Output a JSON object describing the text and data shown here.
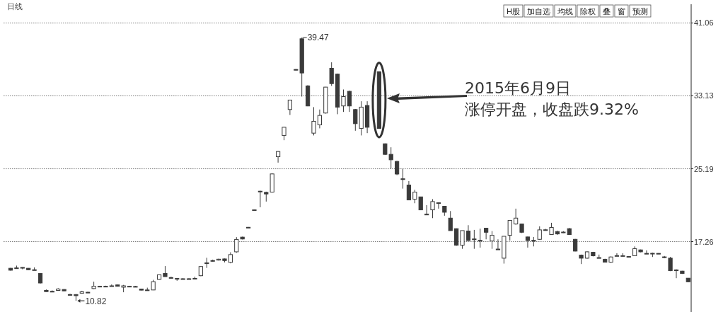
{
  "chart_data": {
    "type": "candlestick",
    "title": "日线",
    "categories": [
      null,
      null,
      null,
      null,
      null,
      null,
      null,
      null,
      null,
      null,
      null,
      null,
      null,
      null,
      null,
      null,
      null,
      null,
      null,
      null,
      null,
      null,
      null,
      null,
      null,
      null,
      null,
      null,
      null,
      null,
      null,
      null,
      null,
      null,
      null,
      null,
      null,
      null,
      null,
      null,
      null,
      null,
      null,
      null,
      null,
      null,
      null,
      null,
      null,
      null,
      null,
      null,
      null,
      null,
      null,
      null,
      null,
      null,
      null,
      null,
      null,
      null,
      null,
      null,
      null,
      null,
      null,
      null,
      null,
      null,
      null,
      null,
      null,
      null,
      null,
      null,
      null,
      null,
      null,
      null,
      null,
      null,
      null,
      null,
      null,
      null,
      null,
      null,
      null,
      null,
      null,
      null,
      null,
      null,
      null,
      null,
      null,
      null,
      null,
      null,
      null,
      null,
      null,
      null,
      null,
      null,
      null,
      null,
      null,
      null,
      null,
      null,
      null,
      null,
      null
    ],
    "ohlc": [
      [
        14.36,
        14.4,
        14.1,
        14.15
      ],
      [
        14.4,
        14.65,
        14.36,
        14.38
      ],
      [
        14.45,
        14.48,
        14.25,
        14.43
      ],
      [
        14.36,
        14.38,
        14.18,
        14.2
      ],
      [
        14.2,
        14.45,
        14.18,
        14.18
      ],
      [
        13.79,
        13.85,
        12.7,
        12.76
      ],
      [
        11.95,
        12.05,
        11.8,
        11.82
      ],
      [
        11.85,
        11.95,
        11.78,
        11.82
      ],
      [
        11.95,
        12.2,
        11.92,
        12.1
      ],
      [
        12.05,
        12.08,
        11.88,
        11.9
      ],
      [
        11.5,
        11.58,
        11.42,
        11.48
      ],
      [
        11.5,
        11.55,
        10.82,
        11.38
      ],
      [
        11.65,
        11.9,
        11.6,
        11.8
      ],
      [
        11.75,
        11.8,
        11.7,
        11.74
      ],
      [
        12.15,
        12.9,
        12.1,
        12.4
      ],
      [
        12.38,
        12.45,
        12.33,
        12.4
      ],
      [
        12.4,
        12.46,
        12.34,
        12.38
      ],
      [
        12.45,
        12.6,
        12.42,
        12.44
      ],
      [
        12.55,
        12.58,
        12.38,
        12.4
      ],
      [
        12.3,
        12.55,
        11.75,
        12.45
      ],
      [
        12.4,
        12.45,
        12.35,
        12.4
      ],
      [
        12.38,
        12.44,
        12.33,
        12.36
      ],
      [
        12.1,
        12.13,
        11.95,
        11.98
      ],
      [
        12.0,
        12.25,
        11.98,
        11.99
      ],
      [
        12.0,
        13.1,
        11.98,
        12.9
      ],
      [
        13.15,
        13.68,
        13.1,
        13.65
      ],
      [
        13.8,
        14.6,
        13.45,
        13.45
      ],
      [
        13.35,
        13.45,
        13.25,
        13.33
      ],
      [
        13.25,
        13.28,
        13.0,
        13.22
      ],
      [
        13.2,
        13.28,
        13.15,
        13.22
      ],
      [
        13.22,
        13.28,
        13.15,
        13.2
      ],
      [
        13.25,
        13.45,
        13.24,
        13.26
      ],
      [
        13.55,
        14.6,
        13.5,
        14.55
      ],
      [
        14.9,
        15.5,
        14.4,
        14.95
      ],
      [
        15.2,
        15.3,
        15.1,
        15.18
      ],
      [
        15.25,
        15.4,
        15.2,
        15.35
      ],
      [
        15.38,
        15.42,
        15.0,
        15.2
      ],
      [
        15.0,
        16.1,
        14.9,
        15.85
      ],
      [
        16.15,
        17.75,
        16.05,
        17.5
      ],
      [
        17.75,
        17.8,
        17.5,
        17.55
      ],
      [
        18.82,
        18.85,
        18.78,
        18.8
      ],
      [
        20.7,
        20.75,
        20.68,
        20.72
      ],
      [
        22.7,
        22.8,
        21.0,
        22.75
      ],
      [
        22.62,
        22.7,
        21.62,
        22.45
      ],
      [
        22.65,
        24.7,
        22.6,
        24.63
      ],
      [
        26.5,
        27.1,
        25.86,
        27.07
      ],
      [
        28.82,
        29.75,
        28.3,
        29.71
      ],
      [
        31.64,
        32.7,
        31.05,
        32.67
      ],
      [
        36.0,
        36.05,
        35.9,
        35.95
      ],
      [
        39.34,
        39.47,
        33.05,
        35.62
      ],
      [
        34.21,
        34.3,
        32.0,
        32.03
      ],
      [
        29.07,
        31.9,
        28.82,
        30.36
      ],
      [
        29.97,
        31.64,
        29.59,
        31.0
      ],
      [
        31.26,
        34.1,
        31.2,
        34.08
      ],
      [
        36.13,
        36.78,
        34.21,
        34.46
      ],
      [
        35.49,
        35.55,
        31.13,
        31.9
      ],
      [
        32.03,
        33.82,
        31.38,
        33.05
      ],
      [
        33.62,
        33.7,
        31.38,
        32.03
      ],
      [
        31.64,
        31.7,
        29.33,
        30.1
      ],
      [
        29.59,
        32.54,
        28.82,
        31.9
      ],
      [
        32.08,
        32.54,
        29.07,
        29.71
      ],
      null,
      [
        35.75,
        35.8,
        29.55,
        29.59
      ],
      [
        27.91,
        27.95,
        26.7,
        26.76
      ],
      [
        26.76,
        27.53,
        25.21,
        26.17
      ],
      [
        25.99,
        26.05,
        24.5,
        24.62
      ],
      [
        24.1,
        25.21,
        23.03,
        24.05
      ],
      [
        23.42,
        23.85,
        21.8,
        21.8
      ],
      [
        21.88,
        22.9,
        21.44,
        22.65
      ],
      [
        22.13,
        22.15,
        20.7,
        20.72
      ],
      [
        20.25,
        21.23,
        20.18,
        20.21
      ],
      [
        20.72,
        21.88,
        19.82,
        21.62
      ],
      [
        21.49,
        21.52,
        20.85,
        21.45
      ],
      [
        21.11,
        21.15,
        20.08,
        20.46
      ],
      [
        19.82,
        20.59,
        18.46,
        18.46
      ],
      [
        18.67,
        18.7,
        16.8,
        16.87
      ],
      [
        16.87,
        18.46,
        16.48,
        18.46
      ],
      [
        18.41,
        19.05,
        17.35,
        17.38
      ],
      [
        17.55,
        18.54,
        16.48,
        17.5
      ],
      [
        17.4,
        18.67,
        16.61,
        17.38
      ],
      [
        18.72,
        18.75,
        17.51,
        18.28
      ],
      [
        17.33,
        18.41,
        16.48,
        17.95
      ],
      [
        16.45,
        17.51,
        16.38,
        16.41
      ],
      [
        15.46,
        17.84,
        14.87,
        17.84
      ],
      [
        17.95,
        19.57,
        17.38,
        19.57
      ],
      [
        19.18,
        20.85,
        19.1,
        19.82
      ],
      [
        19.18,
        19.2,
        18.2,
        18.28
      ],
      [
        17.77,
        17.8,
        16.61,
        17.38
      ],
      [
        17.4,
        17.77,
        16.74,
        17.38
      ],
      [
        17.51,
        18.92,
        17.45,
        18.54
      ],
      [
        18.55,
        18.65,
        18.45,
        18.54
      ],
      [
        18.03,
        19.31,
        18.0,
        18.8
      ],
      [
        18.36,
        18.45,
        18.0,
        18.1
      ],
      [
        18.3,
        18.4,
        18.2,
        18.28
      ],
      [
        18.67,
        18.75,
        18.0,
        18.03
      ],
      [
        17.51,
        17.55,
        16.2,
        16.23
      ],
      [
        15.79,
        15.85,
        14.82,
        15.46
      ],
      [
        15.46,
        16.2,
        15.4,
        16.15
      ],
      [
        16.1,
        16.15,
        15.65,
        15.72
      ],
      [
        15.52,
        15.85,
        15.48,
        15.51
      ],
      [
        15.33,
        15.4,
        15.0,
        15.02
      ],
      [
        15.02,
        15.65,
        14.95,
        15.59
      ],
      [
        15.74,
        16.0,
        15.7,
        15.72
      ],
      [
        15.72,
        16.0,
        15.7,
        15.73
      ],
      [
        15.64,
        15.66,
        15.6,
        15.62
      ],
      [
        15.72,
        16.74,
        15.7,
        16.49
      ],
      [
        16.36,
        16.4,
        16.1,
        16.15
      ],
      [
        15.98,
        16.31,
        15.93,
        15.97
      ],
      [
        15.99,
        16.05,
        15.59,
        15.97
      ],
      [
        15.98,
        16.0,
        15.92,
        15.95
      ],
      [
        15.6,
        15.7,
        15.45,
        15.59
      ],
      [
        15.46,
        15.6,
        14.05,
        14.1
      ],
      [
        14.18,
        14.25,
        13.28,
        14.15
      ],
      [
        14.05,
        14.08,
        13.75,
        13.79
      ],
      [
        13.28,
        13.3,
        12.85,
        12.89
      ]
    ],
    "color": "#3a3a3a",
    "ylim": [
      9.6,
      43.1
    ],
    "yticks": [
      17.26,
      25.19,
      33.13,
      41.06
    ],
    "grid": "y",
    "annotations": [
      "39.47",
      "10.82",
      "2015年6月9日",
      "涨停开盘，收盘跌9.32%",
      "H股",
      "加自选",
      "均线",
      "除权",
      "叠",
      "窗",
      "预测"
    ]
  }
}
